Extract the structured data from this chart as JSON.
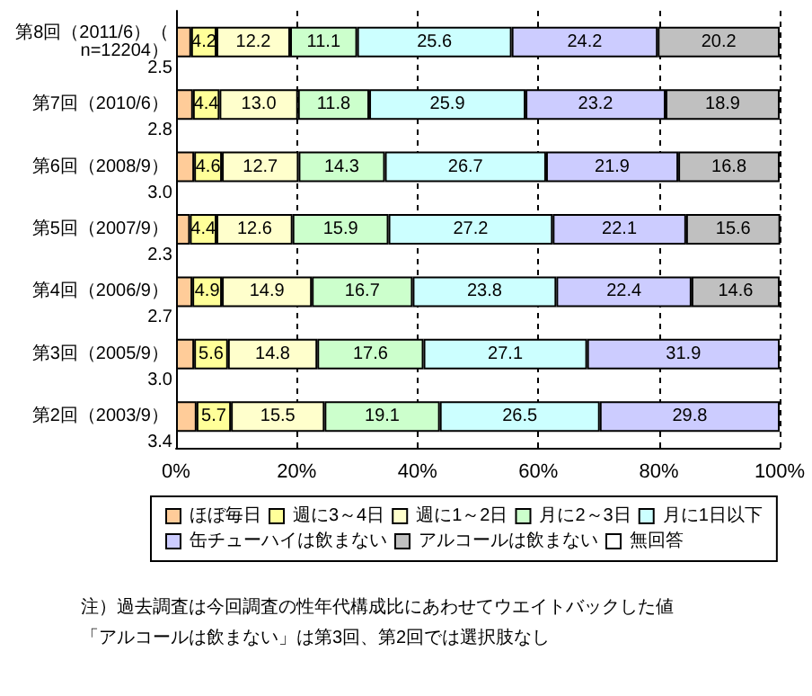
{
  "chart_data": {
    "type": "bar",
    "orientation": "horizontal",
    "stacked": true,
    "categories": [
      "第8回（2011/6）（n=12204）",
      "第7回（2010/6）",
      "第6回（2008/9）",
      "第5回（2007/9）",
      "第4回（2006/9）",
      "第3回（2005/9）",
      "第2回（2003/9）"
    ],
    "series": [
      {
        "name": "ほぼ毎日",
        "color": "#ffcc99",
        "values": [
          2.5,
          2.8,
          3.0,
          2.3,
          2.7,
          3.0,
          3.4
        ],
        "value_labels": [
          "2.5",
          "2.8",
          "3.0",
          "2.3",
          "2.7",
          "3.0",
          "3.4"
        ]
      },
      {
        "name": "週に3～4日",
        "color": "#ffff99",
        "values": [
          4.2,
          4.4,
          4.6,
          4.4,
          4.9,
          5.6,
          5.7
        ],
        "value_labels": [
          "4.2",
          "4.4",
          "4.6",
          "4.4",
          "4.9",
          "5.6",
          "5.7"
        ]
      },
      {
        "name": "週に1～2日",
        "color": "#ffffcc",
        "values": [
          12.2,
          13.0,
          12.7,
          12.6,
          14.9,
          14.8,
          15.5
        ],
        "value_labels": [
          "12.2",
          "13.0",
          "12.7",
          "12.6",
          "14.9",
          "14.8",
          "15.5"
        ]
      },
      {
        "name": "月に2～3日",
        "color": "#ccffcc",
        "values": [
          11.1,
          11.8,
          14.3,
          15.9,
          16.7,
          17.6,
          19.1
        ],
        "value_labels": [
          "11.1",
          "11.8",
          "14.3",
          "15.9",
          "16.7",
          "17.6",
          "19.1"
        ]
      },
      {
        "name": "月に1日以下",
        "color": "#ccffff",
        "values": [
          25.6,
          25.9,
          26.7,
          27.2,
          23.8,
          27.1,
          26.5
        ],
        "value_labels": [
          "25.6",
          "25.9",
          "26.7",
          "27.2",
          "23.8",
          "27.1",
          "26.5"
        ]
      },
      {
        "name": "缶チューハイは飲まない",
        "color": "#ccccff",
        "values": [
          24.2,
          23.2,
          21.9,
          22.1,
          22.4,
          31.9,
          29.8
        ],
        "value_labels": [
          "24.2",
          "23.2",
          "21.9",
          "22.1",
          "22.4",
          "31.9",
          "29.8"
        ]
      },
      {
        "name": "アルコールは飲まない",
        "color": "#c0c0c0",
        "values": [
          20.2,
          18.9,
          16.8,
          15.6,
          14.6,
          null,
          null
        ],
        "value_labels": [
          "20.2",
          "18.9",
          "16.8",
          "15.6",
          "14.6",
          null,
          null
        ]
      },
      {
        "name": "無回答",
        "color": "#ffffff",
        "values": [
          null,
          null,
          null,
          null,
          null,
          null,
          null
        ]
      }
    ],
    "xlim": [
      0,
      100
    ],
    "xticks": [
      {
        "value": 0,
        "label": "0%"
      },
      {
        "value": 20,
        "label": "20%"
      },
      {
        "value": 40,
        "label": "40%"
      },
      {
        "value": 60,
        "label": "60%"
      },
      {
        "value": 80,
        "label": "80%"
      },
      {
        "value": 100,
        "label": "100%"
      }
    ],
    "grid": "x",
    "legend": "bottom",
    "annotations": [
      "注）過去調査は今回調査の性年代構成比にあわせてウエイトバックした値",
      "「アルコールは飲まない」は第3回、第2回では選択肢なし"
    ]
  }
}
